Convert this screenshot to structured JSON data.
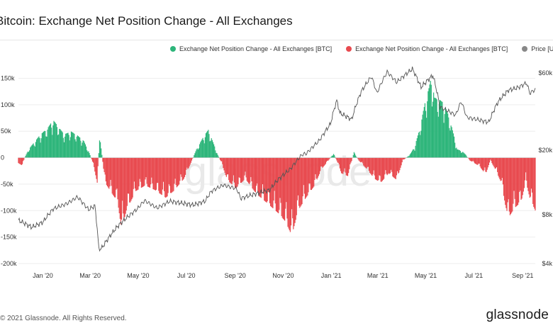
{
  "title": "Bitcoin: Exchange Net Position Change - All Exchanges",
  "footer": "© 2021 Glassnode. All Rights Reserved.",
  "brand": "glassnode",
  "watermark": "glassnode",
  "colors": {
    "positive": "#2db57a",
    "negative": "#e84a4f",
    "price": "#555555",
    "grid": "#eeeeee"
  },
  "legend": [
    {
      "label": "Exchange Net Position Change - All Exchanges [BTC]",
      "color": "#2db57a"
    },
    {
      "label": "Exchange Net Position Change - All Exchanges [BTC]",
      "color": "#e84a4f"
    },
    {
      "label": "Price [USD]",
      "color": "#888888"
    }
  ],
  "chart_data": {
    "type": "bar",
    "x_range": [
      "2019-12-01",
      "2021-09-17"
    ],
    "xticks": [
      {
        "label": "Jan '20",
        "date": "2020-01-01"
      },
      {
        "label": "Mar '20",
        "date": "2020-03-01"
      },
      {
        "label": "May '20",
        "date": "2020-05-01"
      },
      {
        "label": "Jul '20",
        "date": "2020-07-01"
      },
      {
        "label": "Sep '20",
        "date": "2020-09-01"
      },
      {
        "label": "Nov '20",
        "date": "2020-11-01"
      },
      {
        "label": "Jan '21",
        "date": "2021-01-01"
      },
      {
        "label": "Mar '21",
        "date": "2021-03-01"
      },
      {
        "label": "May '21",
        "date": "2021-05-01"
      },
      {
        "label": "Jul '21",
        "date": "2021-07-01"
      },
      {
        "label": "Sep '21",
        "date": "2021-09-01"
      }
    ],
    "y_left": {
      "range": [
        -200000,
        160000
      ],
      "ticks": [
        {
          "value": 150000,
          "label": "150k"
        },
        {
          "value": 100000,
          "label": "100k"
        },
        {
          "value": 50000,
          "label": "50k"
        },
        {
          "value": 0,
          "label": "0"
        },
        {
          "value": -50000,
          "label": "-50k"
        },
        {
          "value": -100000,
          "label": "-100k"
        },
        {
          "value": -150000,
          "label": "-150k"
        },
        {
          "value": -200000,
          "label": "-200k"
        }
      ]
    },
    "y_right": {
      "scale": "log",
      "range": [
        4000,
        60000
      ],
      "ticks": [
        {
          "value": 60000,
          "label": "$60k"
        },
        {
          "value": 20000,
          "label": "$20k"
        },
        {
          "value": 8000,
          "label": "$8k"
        },
        {
          "value": 4000,
          "label": "$4k"
        }
      ]
    },
    "series": [
      {
        "name": "Exchange Net Position Change - All Exchanges [BTC]",
        "axis": "left",
        "unit": "BTC",
        "keypoints": [
          [
            "2019-12-01",
            -10000
          ],
          [
            "2019-12-06",
            -14000
          ],
          [
            "2019-12-09",
            0
          ],
          [
            "2019-12-14",
            15000
          ],
          [
            "2019-12-28",
            40000
          ],
          [
            "2020-01-08",
            55000
          ],
          [
            "2020-01-14",
            68000
          ],
          [
            "2020-01-20",
            57000
          ],
          [
            "2020-01-28",
            42000
          ],
          [
            "2020-02-06",
            47000
          ],
          [
            "2020-02-14",
            40000
          ],
          [
            "2020-02-22",
            30000
          ],
          [
            "2020-02-28",
            12000
          ],
          [
            "2020-03-03",
            -3000
          ],
          [
            "2020-03-07",
            -25000
          ],
          [
            "2020-03-10",
            -45000
          ],
          [
            "2020-03-13",
            40000
          ],
          [
            "2020-03-16",
            5000
          ],
          [
            "2020-03-20",
            -45000
          ],
          [
            "2020-04-05",
            -80000
          ],
          [
            "2020-04-10",
            -130000
          ],
          [
            "2020-04-16",
            -95000
          ],
          [
            "2020-04-28",
            -60000
          ],
          [
            "2020-05-10",
            -50000
          ],
          [
            "2020-05-22",
            -58000
          ],
          [
            "2020-06-05",
            -72000
          ],
          [
            "2020-06-15",
            -60000
          ],
          [
            "2020-06-28",
            -38000
          ],
          [
            "2020-07-08",
            -6000
          ],
          [
            "2020-07-14",
            15000
          ],
          [
            "2020-07-23",
            38000
          ],
          [
            "2020-07-29",
            50000
          ],
          [
            "2020-08-04",
            28000
          ],
          [
            "2020-08-10",
            5000
          ],
          [
            "2020-08-15",
            -10000
          ],
          [
            "2020-08-22",
            -40000
          ],
          [
            "2020-09-02",
            -55000
          ],
          [
            "2020-09-14",
            -38000
          ],
          [
            "2020-09-28",
            -65000
          ],
          [
            "2020-10-12",
            -82000
          ],
          [
            "2020-10-26",
            -100000
          ],
          [
            "2020-11-04",
            -115000
          ],
          [
            "2020-11-12",
            -140000
          ],
          [
            "2020-11-20",
            -95000
          ],
          [
            "2020-11-30",
            -72000
          ],
          [
            "2020-12-10",
            -52000
          ],
          [
            "2020-12-20",
            -20000
          ],
          [
            "2020-12-28",
            -6000
          ],
          [
            "2021-01-04",
            8000
          ],
          [
            "2021-01-08",
            -5000
          ],
          [
            "2021-01-14",
            -28000
          ],
          [
            "2021-01-22",
            -33000
          ],
          [
            "2021-01-30",
            10000
          ],
          [
            "2021-02-05",
            -5000
          ],
          [
            "2021-02-15",
            -20000
          ],
          [
            "2021-02-25",
            -38000
          ],
          [
            "2021-03-05",
            -45000
          ],
          [
            "2021-03-15",
            -28000
          ],
          [
            "2021-03-25",
            -40000
          ],
          [
            "2021-04-02",
            -5000
          ],
          [
            "2021-04-08",
            2000
          ],
          [
            "2021-04-12",
            8000
          ],
          [
            "2021-04-17",
            20000
          ],
          [
            "2021-04-23",
            50000
          ],
          [
            "2021-04-30",
            98000
          ],
          [
            "2021-05-05",
            125000
          ],
          [
            "2021-05-08",
            145000
          ],
          [
            "2021-05-12",
            108000
          ],
          [
            "2021-05-18",
            105000
          ],
          [
            "2021-05-24",
            98000
          ],
          [
            "2021-05-31",
            72000
          ],
          [
            "2021-06-06",
            38000
          ],
          [
            "2021-06-10",
            15000
          ],
          [
            "2021-06-16",
            12000
          ],
          [
            "2021-06-21",
            5000
          ],
          [
            "2021-06-26",
            -5000
          ],
          [
            "2021-07-08",
            -15000
          ],
          [
            "2021-07-16",
            -30000
          ],
          [
            "2021-07-22",
            -5000
          ],
          [
            "2021-07-28",
            -20000
          ],
          [
            "2021-08-05",
            -45000
          ],
          [
            "2021-08-10",
            -85000
          ],
          [
            "2021-08-14",
            -108000
          ],
          [
            "2021-08-22",
            -90000
          ],
          [
            "2021-08-30",
            -80000
          ],
          [
            "2021-09-05",
            -42000
          ],
          [
            "2021-09-10",
            -72000
          ],
          [
            "2021-09-17",
            -95000
          ]
        ]
      },
      {
        "name": "Price [USD]",
        "axis": "right",
        "unit": "USD",
        "keypoints": [
          [
            "2019-12-01",
            7400
          ],
          [
            "2019-12-18",
            6700
          ],
          [
            "2020-01-01",
            7200
          ],
          [
            "2020-01-14",
            8700
          ],
          [
            "2020-02-01",
            9400
          ],
          [
            "2020-02-14",
            10300
          ],
          [
            "2020-02-28",
            8600
          ],
          [
            "2020-03-07",
            9100
          ],
          [
            "2020-03-12",
            4900
          ],
          [
            "2020-03-16",
            5000
          ],
          [
            "2020-04-05",
            6800
          ],
          [
            "2020-04-30",
            8700
          ],
          [
            "2020-05-09",
            9800
          ],
          [
            "2020-05-25",
            8800
          ],
          [
            "2020-06-10",
            9700
          ],
          [
            "2020-07-10",
            9200
          ],
          [
            "2020-07-25",
            9700
          ],
          [
            "2020-08-02",
            11200
          ],
          [
            "2020-08-17",
            12200
          ],
          [
            "2020-09-03",
            11600
          ],
          [
            "2020-09-08",
            10100
          ],
          [
            "2020-09-25",
            10700
          ],
          [
            "2020-10-15",
            11400
          ],
          [
            "2020-10-25",
            13100
          ],
          [
            "2020-11-10",
            15300
          ],
          [
            "2020-11-25",
            18800
          ],
          [
            "2020-12-01",
            19200
          ],
          [
            "2020-12-17",
            23000
          ],
          [
            "2020-12-31",
            29000
          ],
          [
            "2021-01-08",
            40500
          ],
          [
            "2021-01-12",
            34000
          ],
          [
            "2021-01-27",
            31000
          ],
          [
            "2021-02-08",
            46000
          ],
          [
            "2021-02-21",
            57000
          ],
          [
            "2021-02-28",
            45000
          ],
          [
            "2021-03-13",
            61000
          ],
          [
            "2021-03-25",
            52500
          ],
          [
            "2021-04-14",
            63500
          ],
          [
            "2021-04-25",
            49000
          ],
          [
            "2021-05-10",
            58000
          ],
          [
            "2021-05-19",
            37000
          ],
          [
            "2021-06-08",
            33000
          ],
          [
            "2021-06-15",
            40000
          ],
          [
            "2021-06-22",
            32000
          ],
          [
            "2021-07-20",
            29800
          ],
          [
            "2021-08-01",
            40000
          ],
          [
            "2021-08-14",
            47000
          ],
          [
            "2021-08-25",
            48500
          ],
          [
            "2021-09-06",
            52000
          ],
          [
            "2021-09-10",
            45000
          ],
          [
            "2021-09-17",
            47500
          ]
        ]
      }
    ]
  }
}
